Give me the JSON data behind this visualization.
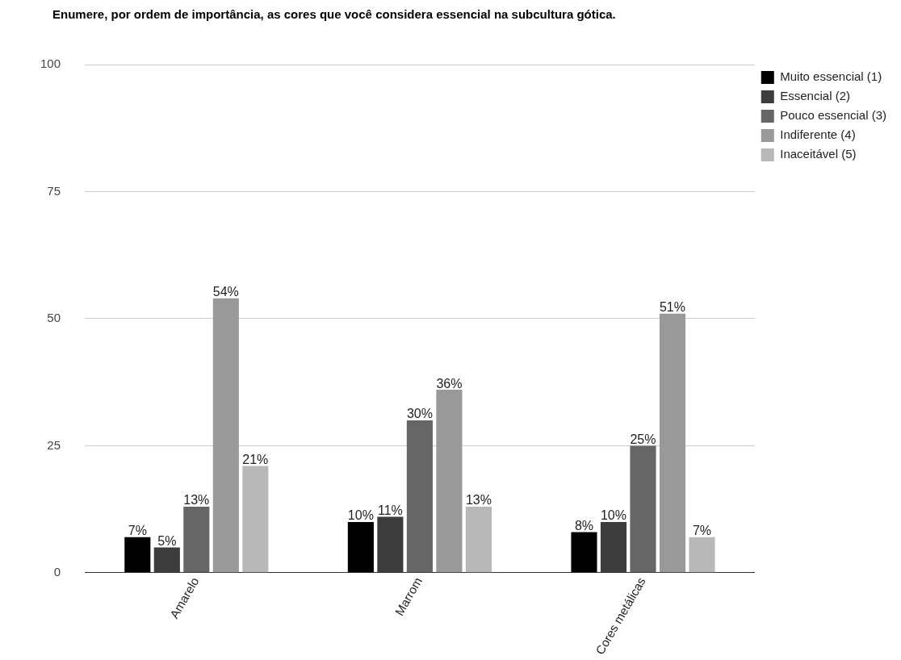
{
  "chart_data": {
    "type": "bar",
    "title": "Enumere, por ordem de importância, as cores que você considera essencial na subcultura gótica.",
    "categories": [
      "Amarelo",
      "Marrom",
      "Cores metálicas"
    ],
    "series": [
      {
        "name": "Muito essencial (1)",
        "color": "#000000",
        "values": [
          7,
          10,
          8
        ],
        "value_labels": [
          "7%",
          "10%",
          "8%"
        ]
      },
      {
        "name": "Essencial (2)",
        "color": "#3c3c3c",
        "values": [
          5,
          11,
          10
        ],
        "value_labels": [
          "5%",
          "11%",
          "10%"
        ]
      },
      {
        "name": "Pouco essencial (3)",
        "color": "#666666",
        "values": [
          13,
          30,
          25
        ],
        "value_labels": [
          "13%",
          "30%",
          "25%"
        ]
      },
      {
        "name": "Indiferente (4)",
        "color": "#999999",
        "values": [
          54,
          36,
          51
        ],
        "value_labels": [
          "54%",
          "36%",
          "51%"
        ]
      },
      {
        "name": "Inaceitável (5)",
        "color": "#b8b8b8",
        "values": [
          21,
          13,
          7
        ],
        "value_labels": [
          "21%",
          "13%",
          "7%"
        ]
      }
    ],
    "ylim": [
      0,
      100
    ],
    "yticks": [
      0,
      25,
      50,
      75,
      100
    ],
    "grid": "y",
    "legend": "top right"
  }
}
